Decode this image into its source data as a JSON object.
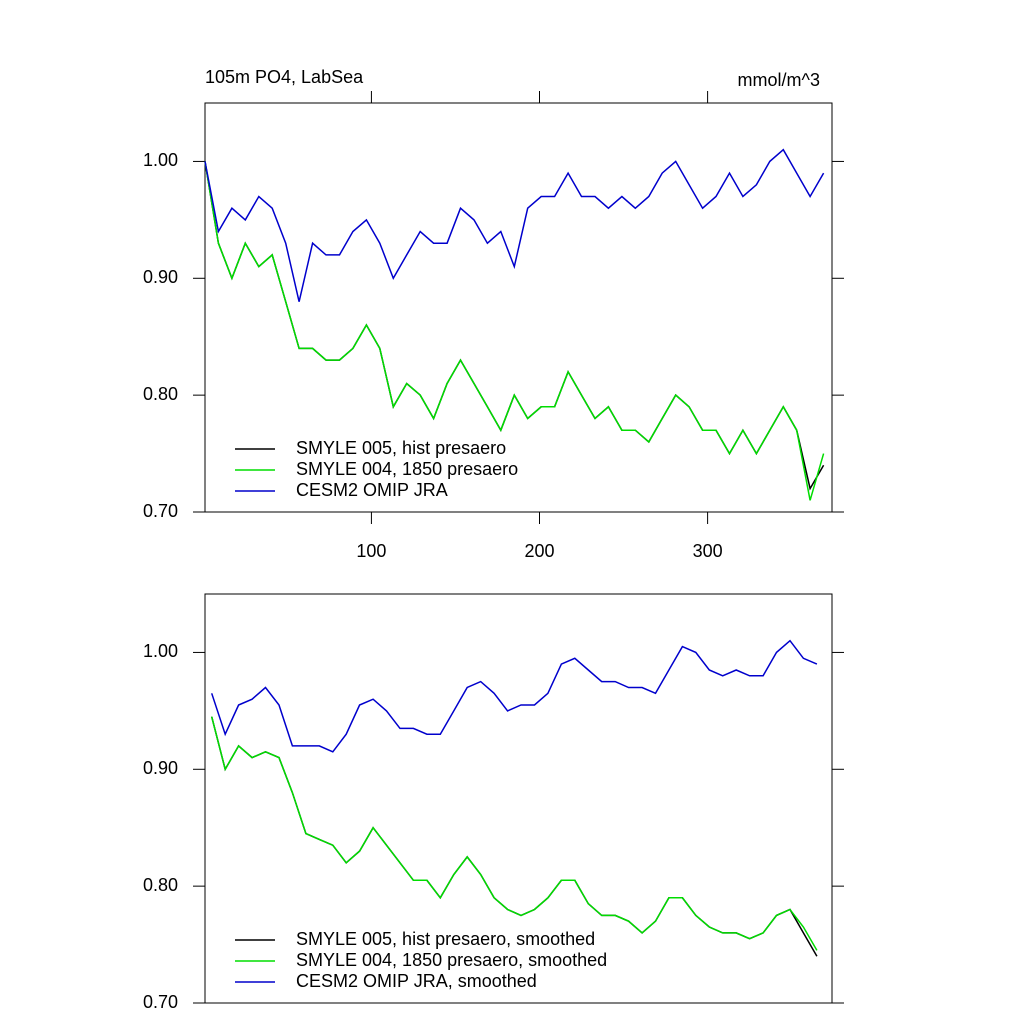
{
  "chart_data": [
    {
      "type": "line",
      "title": "105m PO4, LabSea",
      "units_label": "mmol/m^3",
      "x": [
        1,
        9,
        17,
        25,
        33,
        41,
        49,
        57,
        65,
        73,
        81,
        89,
        97,
        105,
        113,
        121,
        129,
        137,
        145,
        153,
        161,
        169,
        177,
        185,
        193,
        201,
        209,
        217,
        225,
        233,
        241,
        249,
        257,
        265,
        273,
        281,
        289,
        297,
        305,
        313,
        321,
        329,
        337,
        345,
        353,
        361,
        369
      ],
      "series": [
        {
          "name": "SMYLE 005, hist presaero",
          "color": "#000000",
          "values": [
            1.0,
            0.93,
            0.9,
            0.93,
            0.91,
            0.92,
            0.88,
            0.84,
            0.84,
            0.83,
            0.83,
            0.84,
            0.86,
            0.84,
            0.79,
            0.81,
            0.8,
            0.78,
            0.81,
            0.83,
            0.81,
            0.79,
            0.77,
            0.8,
            0.78,
            0.79,
            0.79,
            0.82,
            0.8,
            0.78,
            0.79,
            0.77,
            0.77,
            0.76,
            0.78,
            0.8,
            0.79,
            0.77,
            0.77,
            0.75,
            0.77,
            0.75,
            0.77,
            0.79,
            0.77,
            0.72,
            0.74
          ]
        },
        {
          "name": "SMYLE 004, 1850 presaero",
          "color": "#00dd00",
          "values": [
            1.0,
            0.93,
            0.9,
            0.93,
            0.91,
            0.92,
            0.88,
            0.84,
            0.84,
            0.83,
            0.83,
            0.84,
            0.86,
            0.84,
            0.79,
            0.81,
            0.8,
            0.78,
            0.81,
            0.83,
            0.81,
            0.79,
            0.77,
            0.8,
            0.78,
            0.79,
            0.79,
            0.82,
            0.8,
            0.78,
            0.79,
            0.77,
            0.77,
            0.76,
            0.78,
            0.8,
            0.79,
            0.77,
            0.77,
            0.75,
            0.77,
            0.75,
            0.77,
            0.79,
            0.77,
            0.71,
            0.75
          ]
        },
        {
          "name": "CESM2 OMIP JRA",
          "color": "#0000cc",
          "values": [
            1.0,
            0.94,
            0.96,
            0.95,
            0.97,
            0.96,
            0.93,
            0.88,
            0.93,
            0.92,
            0.92,
            0.94,
            0.95,
            0.93,
            0.9,
            0.92,
            0.94,
            0.93,
            0.93,
            0.96,
            0.95,
            0.93,
            0.94,
            0.91,
            0.96,
            0.97,
            0.97,
            0.99,
            0.97,
            0.97,
            0.96,
            0.97,
            0.96,
            0.97,
            0.99,
            1.0,
            0.98,
            0.96,
            0.97,
            0.99,
            0.97,
            0.98,
            1.0,
            1.01,
            0.99,
            0.97,
            0.99
          ]
        }
      ],
      "xlim": [
        1,
        374
      ],
      "ylim": [
        0.7,
        1.05
      ],
      "xticks": [
        100,
        200,
        300
      ],
      "yticks": [
        {
          "value": 0.7,
          "label": "0.70"
        },
        {
          "value": 0.8,
          "label": "0.80"
        },
        {
          "value": 0.9,
          "label": "0.90"
        },
        {
          "value": 1.0,
          "label": "1.00"
        }
      ]
    },
    {
      "type": "line",
      "x": [
        5,
        13,
        21,
        29,
        37,
        45,
        53,
        61,
        69,
        77,
        85,
        93,
        101,
        109,
        117,
        125,
        133,
        141,
        149,
        157,
        165,
        173,
        181,
        189,
        197,
        205,
        213,
        221,
        229,
        237,
        245,
        253,
        261,
        269,
        277,
        285,
        293,
        301,
        309,
        317,
        325,
        333,
        341,
        349,
        357,
        365
      ],
      "series": [
        {
          "name": "SMYLE 005, hist presaero, smoothed",
          "color": "#000000",
          "values": [
            0.945,
            0.9,
            0.92,
            0.91,
            0.915,
            0.91,
            0.88,
            0.845,
            0.84,
            0.835,
            0.82,
            0.83,
            0.85,
            0.835,
            0.82,
            0.805,
            0.805,
            0.79,
            0.81,
            0.825,
            0.81,
            0.79,
            0.78,
            0.775,
            0.78,
            0.79,
            0.805,
            0.805,
            0.785,
            0.775,
            0.775,
            0.77,
            0.76,
            0.77,
            0.79,
            0.79,
            0.775,
            0.765,
            0.76,
            0.76,
            0.755,
            0.76,
            0.775,
            0.78,
            0.76,
            0.74
          ]
        },
        {
          "name": "SMYLE 004, 1850 presaero, smoothed",
          "color": "#00dd00",
          "values": [
            0.945,
            0.9,
            0.92,
            0.91,
            0.915,
            0.91,
            0.88,
            0.845,
            0.84,
            0.835,
            0.82,
            0.83,
            0.85,
            0.835,
            0.82,
            0.805,
            0.805,
            0.79,
            0.81,
            0.825,
            0.81,
            0.79,
            0.78,
            0.775,
            0.78,
            0.79,
            0.805,
            0.805,
            0.785,
            0.775,
            0.775,
            0.77,
            0.76,
            0.77,
            0.79,
            0.79,
            0.775,
            0.765,
            0.76,
            0.76,
            0.755,
            0.76,
            0.775,
            0.78,
            0.765,
            0.745
          ]
        },
        {
          "name": "CESM2 OMIP JRA, smoothed",
          "color": "#0000cc",
          "values": [
            0.965,
            0.93,
            0.955,
            0.96,
            0.97,
            0.955,
            0.92,
            0.92,
            0.92,
            0.915,
            0.93,
            0.955,
            0.96,
            0.95,
            0.935,
            0.935,
            0.93,
            0.93,
            0.95,
            0.97,
            0.975,
            0.965,
            0.95,
            0.955,
            0.955,
            0.965,
            0.99,
            0.995,
            0.985,
            0.975,
            0.975,
            0.97,
            0.97,
            0.965,
            0.985,
            1.005,
            1.0,
            0.985,
            0.98,
            0.985,
            0.98,
            0.98,
            1.0,
            1.01,
            0.995,
            0.99
          ]
        }
      ],
      "xlim": [
        1,
        374
      ],
      "ylim": [
        0.7,
        1.05
      ],
      "yticks": [
        {
          "value": 0.7,
          "label": "0.70"
        },
        {
          "value": 0.8,
          "label": "0.80"
        },
        {
          "value": 0.9,
          "label": "0.90"
        },
        {
          "value": 1.0,
          "label": "1.00"
        }
      ]
    }
  ]
}
